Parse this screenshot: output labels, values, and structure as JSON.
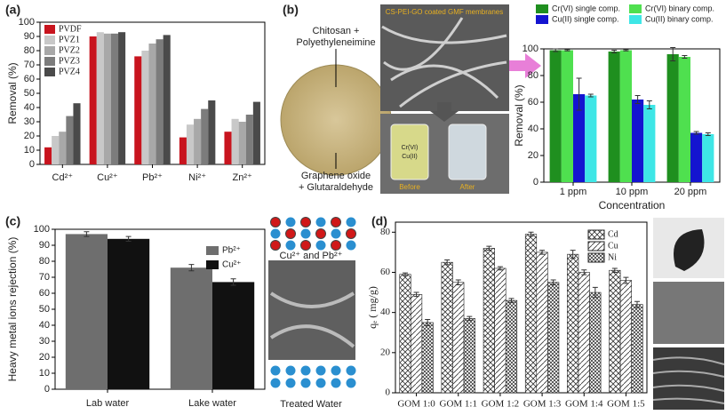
{
  "chart_data": [
    {
      "type": "bar",
      "label": "(a)",
      "ylabel": "Removal (%)",
      "categories": [
        "Cd²⁺",
        "Cu²⁺",
        "Pb²⁺",
        "Ni²⁺",
        "Zn²⁺"
      ],
      "series": [
        {
          "name": "PVDF",
          "color": "#c8141e",
          "values": [
            12,
            90,
            76,
            19,
            23
          ]
        },
        {
          "name": "PVZ1",
          "color": "#c8c8c8",
          "values": [
            20,
            93,
            80,
            28,
            32
          ]
        },
        {
          "name": "PVZ2",
          "color": "#a8a8a8",
          "values": [
            23,
            92,
            85,
            32,
            30
          ]
        },
        {
          "name": "PVZ3",
          "color": "#7c7c7c",
          "values": [
            34,
            92,
            88,
            39,
            35
          ]
        },
        {
          "name": "PVZ4",
          "color": "#4a4a4a",
          "values": [
            43,
            93,
            91,
            45,
            44
          ]
        }
      ],
      "ylim": [
        0,
        100
      ],
      "yticks": [
        0,
        10,
        20,
        30,
        40,
        50,
        60,
        70,
        80,
        90,
        100
      ]
    },
    {
      "type": "bar",
      "label": "(b)",
      "ylabel": "Removal (%)",
      "xlabel": "Concentration",
      "categories": [
        "1 ppm",
        "10 ppm",
        "20 ppm"
      ],
      "series": [
        {
          "name": "Cr(VI) single comp.",
          "color": "#1f8f1f",
          "values": [
            99,
            98,
            96
          ],
          "errors": [
            1,
            1,
            5
          ]
        },
        {
          "name": "Cr(VI) binary comp.",
          "color": "#4fe04f",
          "values": [
            99,
            99,
            94
          ],
          "errors": [
            0.5,
            0.5,
            1
          ]
        },
        {
          "name": "Cu(II) single comp.",
          "color": "#1414d0",
          "values": [
            66,
            62,
            37
          ],
          "errors": [
            12,
            3,
            1
          ]
        },
        {
          "name": "Cu(II) binary comp.",
          "color": "#3ee6e6",
          "values": [
            65,
            58,
            36
          ],
          "errors": [
            1,
            3,
            1
          ]
        }
      ],
      "ylim": [
        0,
        100
      ],
      "yticks": [
        0,
        20,
        40,
        60,
        80,
        100
      ],
      "annotations": [
        "Chitosan + Polyethyleneimine",
        "Graphene oxide + Glutaraldehyde",
        "CS-PEI-GO coated GMF membranes",
        "Cr(VI)",
        "Cu(II)",
        "Before",
        "After"
      ]
    },
    {
      "type": "bar",
      "label": "(c)",
      "ylabel": "Heavy metal ions rejection (%)",
      "categories": [
        "Lab water",
        "Lake water"
      ],
      "series": [
        {
          "name": "Pb²⁺",
          "color": "#6e6e6e",
          "values": [
            97,
            76
          ],
          "errors": [
            1.5,
            2
          ]
        },
        {
          "name": "Cu²⁺",
          "color": "#111111",
          "values": [
            94,
            67
          ],
          "errors": [
            1.5,
            2
          ]
        }
      ],
      "ylim": [
        0,
        100
      ],
      "yticks": [
        0,
        10,
        20,
        30,
        40,
        50,
        60,
        70,
        80,
        90,
        100
      ],
      "annotations": [
        "Cu²⁺ and Pb²⁺",
        "Treated Water"
      ]
    },
    {
      "type": "bar",
      "label": "(d)",
      "ylabel": "qₑ ( mg/g)",
      "categories": [
        "GOM 1:0",
        "GOM 1:1",
        "GOM 1:2",
        "GOM 1:3",
        "GOM 1:4",
        "GOM 1:5"
      ],
      "series": [
        {
          "name": "Cd",
          "pattern": "crosshatch",
          "values": [
            59,
            65,
            72,
            79,
            69,
            61
          ],
          "errors": [
            0.7,
            1.2,
            1,
            1,
            2,
            1
          ]
        },
        {
          "name": "Cu",
          "pattern": "diagonal",
          "values": [
            49,
            55,
            62,
            70,
            60,
            56
          ],
          "errors": [
            1,
            1.2,
            0.8,
            1,
            1.2,
            1.5
          ]
        },
        {
          "name": "Ni",
          "pattern": "grid",
          "values": [
            35,
            37,
            46,
            55,
            50,
            44
          ],
          "errors": [
            1.5,
            1,
            1,
            1.2,
            2.5,
            1.5
          ]
        }
      ],
      "ylim": [
        0,
        85
      ],
      "yticks": [
        0,
        20,
        40,
        60,
        80
      ]
    }
  ]
}
